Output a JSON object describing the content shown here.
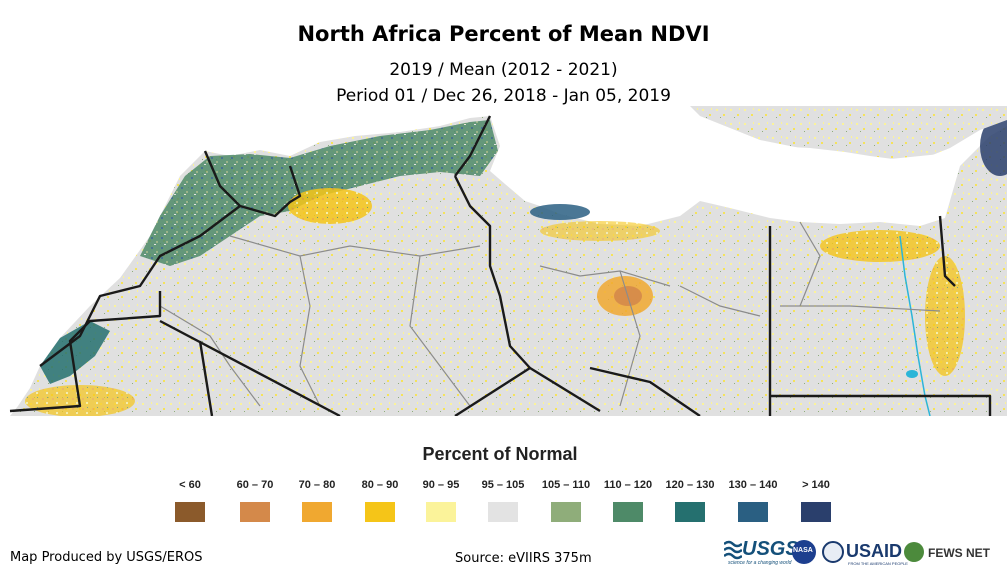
{
  "title": "North Africa Percent of Mean NDVI",
  "subtitle_line1": "2019 / Mean (2012 - 2021)",
  "subtitle_line2": "Period 01 / Dec 26, 2018 - Jan 05, 2019",
  "legend": {
    "title": "Percent of Normal",
    "items": [
      {
        "label": "< 60",
        "color": "#8b5a2b"
      },
      {
        "label": "60 – 70",
        "color": "#d4894a"
      },
      {
        "label": "70 – 80",
        "color": "#f0a830"
      },
      {
        "label": "80 – 90",
        "color": "#f5c518"
      },
      {
        "label": "90 – 95",
        "color": "#fbf39a"
      },
      {
        "label": "95 – 105",
        "color": "#e3e3e3"
      },
      {
        "label": "105 – 110",
        "color": "#8fad7a"
      },
      {
        "label": "110 – 120",
        "color": "#4e8a68"
      },
      {
        "label": "120 – 130",
        "color": "#25706f"
      },
      {
        "label": "130 – 140",
        "color": "#2a5f82"
      },
      {
        "label": ">  140",
        "color": "#2a3f6c"
      }
    ]
  },
  "footer": {
    "produced_by": "Map Produced by USGS/EROS",
    "source": "Source: eVIIRS 375m"
  },
  "logos": {
    "usgs": "USGS",
    "usgs_tagline": "science for a changing world",
    "nasa": "NASA",
    "usaid": "USAID",
    "usaid_tagline": "FROM THE AMERICAN PEOPLE",
    "fews": "FEWS NET"
  },
  "map_colors": {
    "background_land": "#dcdcdc",
    "sea": "#ffffff",
    "border": "#1a1a1a",
    "admin": "#8c8c8c",
    "water": "#2bb5d8"
  }
}
